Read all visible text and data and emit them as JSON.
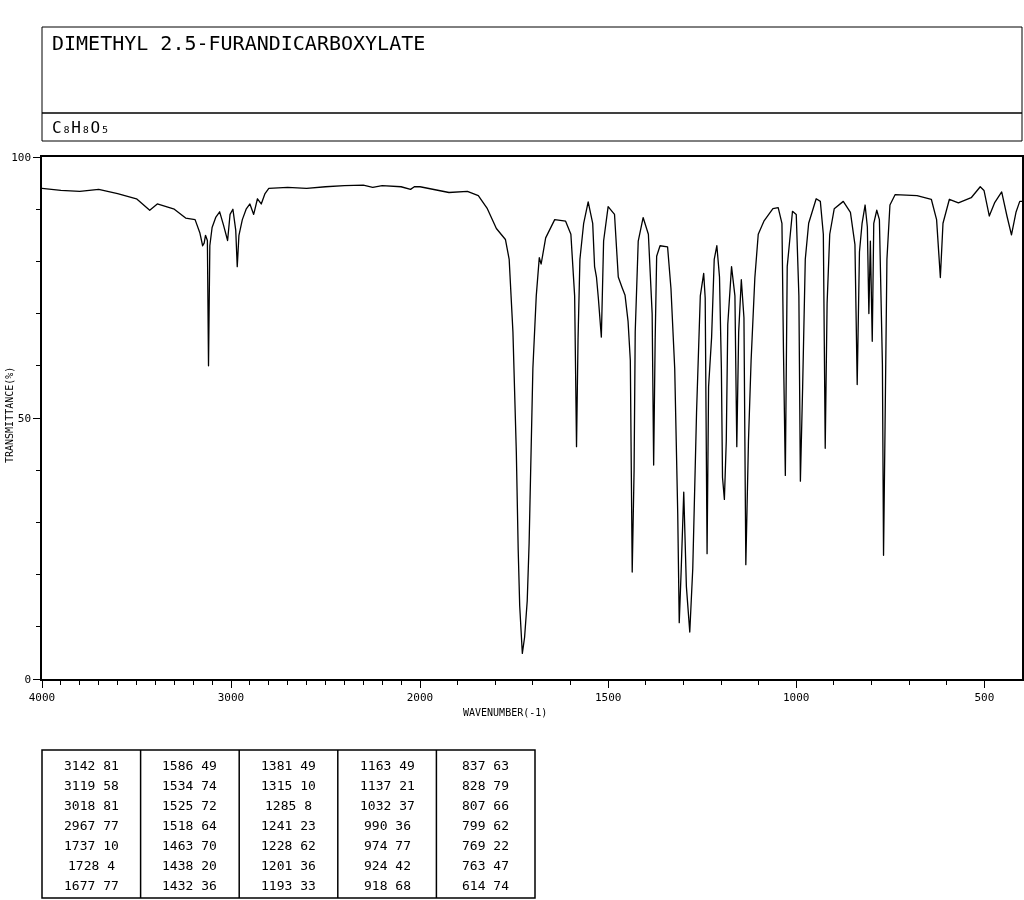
{
  "chart_data": [
    {
      "type": "line",
      "title": "DIMETHYL 2.5-FURANDICARBOXYLATE",
      "subtitle": "C₈H₈O₅",
      "xlabel": "WAVENUMBER(-1)",
      "ylabel": "TRANSMITTANCE(%)",
      "color": "#000000",
      "x": [
        4000,
        3900,
        3800,
        3700,
        3600,
        3500,
        3430,
        3390,
        3300,
        3240,
        3190,
        3165,
        3150,
        3142,
        3135,
        3125,
        3119,
        3112,
        3100,
        3080,
        3060,
        3040,
        3018,
        3005,
        2990,
        2975,
        2967,
        2958,
        2940,
        2920,
        2900,
        2880,
        2860,
        2840,
        2820,
        2800,
        2700,
        2600,
        2500,
        2400,
        2300,
        2250,
        2200,
        2100,
        2050,
        2030,
        2000
      ],
      "values": [
        94,
        93.6,
        93.4,
        93.8,
        93,
        92,
        89.8,
        91,
        90,
        88.3,
        88,
        85.5,
        83,
        83.5,
        85,
        84,
        60,
        83,
        86.5,
        88.5,
        89.5,
        87,
        84,
        89,
        90,
        86,
        79,
        85,
        88,
        90,
        91,
        89,
        92,
        91,
        93,
        94,
        94.2,
        94,
        94.3,
        94.5,
        94.6,
        94.2,
        94.5,
        94.3,
        93.8,
        94.3,
        94.3
      ],
      "xlim": [
        4000,
        2000
      ],
      "xticks": [
        4000,
        {
          "value": 3900,
          "label": null
        },
        {
          "value": 3800,
          "label": null
        },
        {
          "value": 3700,
          "label": null
        },
        {
          "value": 3600,
          "label": null
        },
        {
          "value": 3500,
          "label": null
        },
        {
          "value": 3400,
          "label": null
        },
        {
          "value": 3300,
          "label": null
        },
        {
          "value": 3200,
          "label": null
        },
        {
          "value": 3100,
          "label": null
        },
        3000,
        {
          "value": 2900,
          "label": null
        },
        {
          "value": 2800,
          "label": null
        },
        {
          "value": 2700,
          "label": null
        },
        {
          "value": 2600,
          "label": null
        },
        {
          "value": 2500,
          "label": null
        },
        {
          "value": 2400,
          "label": null
        },
        {
          "value": 2300,
          "label": null
        },
        {
          "value": 2200,
          "label": null
        },
        {
          "value": 2100,
          "label": null
        },
        2000
      ],
      "ylim": [
        0,
        100
      ],
      "yticks": [
        0,
        {
          "value": 10,
          "label": null
        },
        {
          "value": 20,
          "label": null
        },
        {
          "value": 30,
          "label": null
        },
        {
          "value": 40,
          "label": null
        },
        50,
        {
          "value": 60,
          "label": null
        },
        {
          "value": 70,
          "label": null
        },
        {
          "value": 80,
          "label": null
        },
        {
          "value": 90,
          "label": null
        },
        100
      ],
      "annotations": [
        "3142 81",
        "3119 58",
        "3018 81",
        "2967 77",
        "1737 10",
        "1728 4",
        "1677 77",
        "1586 49",
        "1534 74",
        "1525 72",
        "1518 64",
        "1463 70",
        "1438 20",
        "1432 36",
        "1381 49",
        "1315 10",
        "1285 8",
        "1241 23",
        "1228 62",
        "1201 36",
        "1193 33",
        "1163 49",
        "1137 21",
        "1032 37",
        "990 36",
        "974 77",
        "924 42",
        "918 68",
        "837 63",
        "828 79",
        "807 66",
        "799 62",
        "769 22",
        "763 47",
        "614 74"
      ]
    },
    {
      "type": "line",
      "color": "#000000",
      "x": [
        2000,
        1923,
        1874,
        1845,
        1821,
        1797,
        1773,
        1763,
        1753,
        1744,
        1739,
        1735,
        1728,
        1722,
        1715,
        1710,
        1700,
        1691,
        1683,
        1678,
        1666,
        1642,
        1613,
        1599,
        1589,
        1584,
        1580,
        1575,
        1565,
        1553,
        1541,
        1536,
        1531,
        1526,
        1518,
        1512,
        1500,
        1483,
        1473,
        1463,
        1455,
        1447,
        1441,
        1436,
        1431,
        1428,
        1420,
        1407,
        1393,
        1383,
        1379,
        1375,
        1371,
        1362,
        1342,
        1333,
        1323,
        1315,
        1311,
        1306,
        1299,
        1292,
        1283,
        1275,
        1265,
        1255,
        1246,
        1242,
        1237,
        1233,
        1225,
        1218,
        1211,
        1204,
        1199,
        1196,
        1191,
        1186,
        1182,
        1172,
        1163,
        1158,
        1153,
        1146,
        1139,
        1134,
        1127,
        1120,
        1110,
        1101,
        1086,
        1062,
        1048,
        1038,
        1034,
        1029,
        1024,
        1010,
        1000,
        993,
        989,
        983,
        976,
        967,
        947,
        936,
        928,
        923,
        918,
        911,
        899,
        875,
        856,
        844,
        838,
        832,
        825,
        817,
        811,
        807,
        803,
        798,
        794,
        786,
        779,
        771,
        768,
        764,
        759,
        751,
        737,
        679,
        641,
        627,
        617,
        610,
        593,
        569,
        535,
        511,
        501,
        487,
        473,
        454,
        440,
        428,
        416,
        406,
        400
      ],
      "values": [
        94.3,
        93.2,
        93.4,
        92.6,
        90.1,
        86.3,
        84.2,
        80.4,
        66.5,
        43.5,
        24.7,
        14,
        4.9,
        8,
        15,
        26,
        59.5,
        73.4,
        80.7,
        79.5,
        84.5,
        88,
        87.7,
        85.2,
        73.4,
        44.5,
        65,
        80.4,
        87.3,
        91.4,
        87.3,
        79,
        77,
        73,
        65.5,
        83.9,
        90.5,
        89,
        77,
        75,
        73.5,
        68.5,
        61,
        20.5,
        40,
        66.5,
        83.9,
        88.4,
        85.2,
        70,
        41,
        65,
        81,
        83,
        82.8,
        74.8,
        59.5,
        31.7,
        10.8,
        20.5,
        35.8,
        17.7,
        9,
        21.2,
        51,
        73.4,
        77.7,
        73,
        24,
        56,
        65.4,
        80.4,
        83,
        77,
        59.5,
        38.6,
        34.4,
        45.6,
        67.9,
        79,
        73.4,
        44.5,
        66.5,
        76.5,
        69.2,
        21.9,
        45.6,
        61,
        76.9,
        85.2,
        87.7,
        90.1,
        90.3,
        87.3,
        63,
        39,
        79,
        89.6,
        89,
        73.4,
        37.9,
        56,
        80.4,
        87.3,
        92,
        91.5,
        85.2,
        44.2,
        72,
        85.2,
        90.1,
        91.5,
        89.4,
        83.2,
        56.4,
        81.8,
        87.3,
        90.8,
        86.6,
        70,
        83.9,
        64.7,
        87.3,
        89.8,
        88,
        60.2,
        23.7,
        48.4,
        80.4,
        90.8,
        92.8,
        92.6,
        91.9,
        88,
        76.9,
        87.3,
        91.9,
        91.2,
        92.2,
        94.3,
        93.6,
        88.7,
        91.2,
        93.3,
        88.7,
        85.1,
        89.4,
        91.5,
        91.5
      ],
      "xlim": [
        2000,
        400
      ],
      "xticks": [
        {
          "value": 1900,
          "label": null
        },
        {
          "value": 1800,
          "label": null
        },
        {
          "value": 1700,
          "label": null
        },
        {
          "value": 1600,
          "label": null
        },
        1500,
        {
          "value": 1400,
          "label": null
        },
        {
          "value": 1300,
          "label": null
        },
        {
          "value": 1200,
          "label": null
        },
        {
          "value": 1100,
          "label": null
        },
        1000,
        {
          "value": 900,
          "label": null
        },
        {
          "value": 800,
          "label": null
        },
        {
          "value": 700,
          "label": null
        },
        {
          "value": 600,
          "label": null
        },
        500
      ],
      "ylim": [
        0,
        100
      ],
      "tick_labels": "x"
    }
  ]
}
